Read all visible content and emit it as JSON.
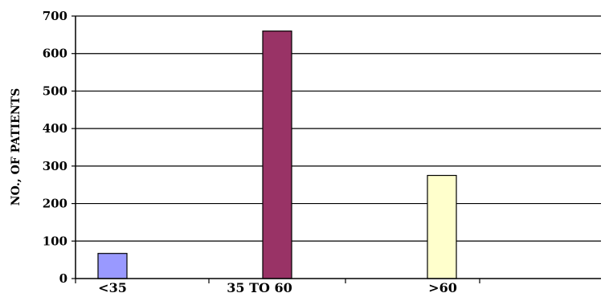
{
  "chart_data": {
    "type": "bar",
    "title": "",
    "xlabel": "",
    "ylabel": "NO., OF PATIENTS",
    "ylim": [
      0,
      700
    ],
    "yticks": [
      0,
      100,
      200,
      300,
      400,
      500,
      600,
      700
    ],
    "grid": true,
    "legend": "none",
    "categories": [
      "<35",
      "35 TO 60",
      ">60"
    ],
    "values": [
      67,
      660,
      275
    ],
    "colors": [
      "#9999ff",
      "#993366",
      "#ffffcc"
    ]
  }
}
